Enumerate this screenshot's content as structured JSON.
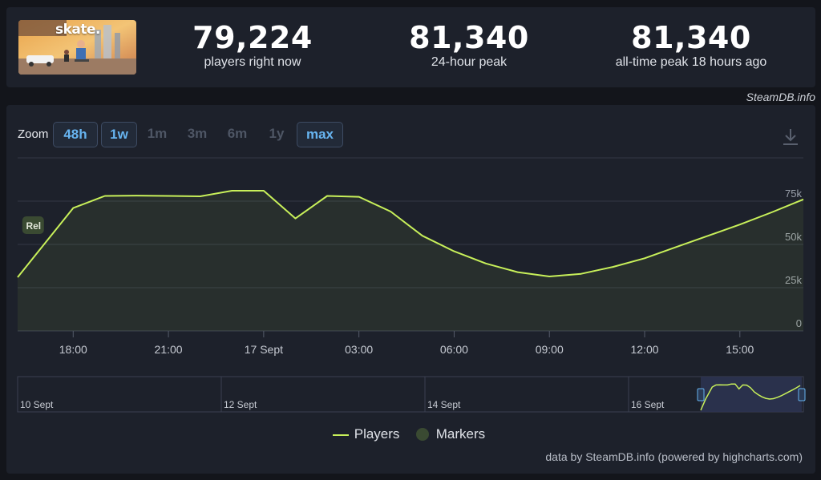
{
  "stats": [
    {
      "value": "79,224",
      "label": "players right now"
    },
    {
      "value": "81,340",
      "label": "24-hour peak"
    },
    {
      "value": "81,340",
      "label": "all-time peak 18 hours ago"
    }
  ],
  "thumbnail": {
    "text": "skate."
  },
  "credit_top": "SteamDB.info",
  "zoom": {
    "label": "Zoom",
    "buttons": [
      {
        "label": "48h",
        "active": true
      },
      {
        "label": "1w",
        "active": true
      },
      {
        "label": "1m",
        "active": false
      },
      {
        "label": "3m",
        "active": false
      },
      {
        "label": "6m",
        "active": false
      },
      {
        "label": "1y",
        "active": false
      },
      {
        "label": "max",
        "active": true
      }
    ]
  },
  "icons": {
    "download": "download-icon"
  },
  "colors": {
    "line": "#c8f05a",
    "marker": "#3a4a32",
    "grid": "#333846"
  },
  "chart_data": {
    "type": "line",
    "series": [
      {
        "name": "Players",
        "x": [
          "16 Sept 16:15",
          "16 Sept 18:00",
          "16 Sept 19:00",
          "16 Sept 20:00",
          "16 Sept 21:00",
          "16 Sept 22:00",
          "16 Sept 23:00",
          "17 Sept 00:00",
          "17 Sept 01:00",
          "17 Sept 02:00",
          "17 Sept 03:00",
          "17 Sept 04:00",
          "17 Sept 05:00",
          "17 Sept 06:00",
          "17 Sept 07:00",
          "17 Sept 08:00",
          "17 Sept 09:00",
          "17 Sept 10:00",
          "17 Sept 11:00",
          "17 Sept 12:00",
          "17 Sept 13:00",
          "17 Sept 14:00",
          "17 Sept 15:00",
          "17 Sept 16:00",
          "17 Sept 17:00"
        ],
        "values": [
          31000,
          71000,
          78000,
          78200,
          78000,
          77800,
          81000,
          81000,
          65000,
          78000,
          77500,
          69000,
          55000,
          46000,
          39000,
          34000,
          31500,
          33000,
          37000,
          42000,
          48500,
          55000,
          61500,
          68500,
          76000
        ]
      }
    ],
    "markers": [
      {
        "x": "16 Sept 16:45",
        "label": "Rel"
      }
    ],
    "x_ticks": [
      "18:00",
      "21:00",
      "17 Sept",
      "03:00",
      "06:00",
      "09:00",
      "12:00",
      "15:00"
    ],
    "y_ticks": [
      "0",
      "25k",
      "50k",
      "75k"
    ],
    "ylim": [
      0,
      100000
    ],
    "grid": true,
    "legend": [
      {
        "name": "Players",
        "kind": "line"
      },
      {
        "name": "Markers",
        "kind": "dot"
      }
    ],
    "legend_position": "bottom-center",
    "navigator": {
      "labels": [
        "10 Sept",
        "12 Sept",
        "14 Sept",
        "16 Sept"
      ]
    }
  },
  "credit_bottom": "data by SteamDB.info (powered by highcharts.com)"
}
